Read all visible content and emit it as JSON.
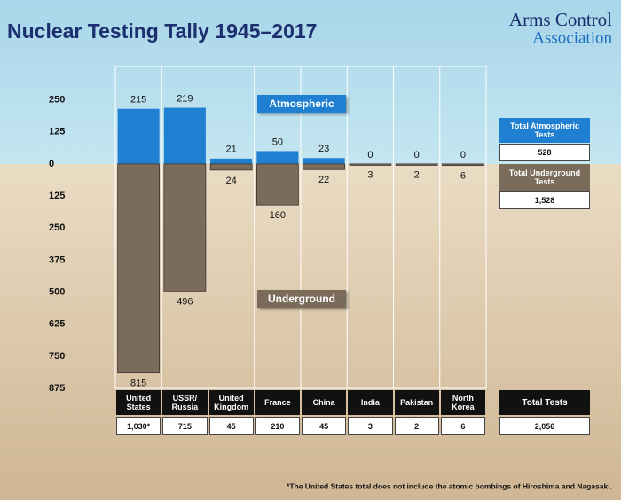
{
  "header": {
    "logo_line1": "Arms Control",
    "logo_line2": "Association"
  },
  "chart_data": {
    "type": "diverging_bar",
    "title": "Nuclear Testing Tally 1945–2017",
    "categories": [
      "United States",
      "USSR/ Russia",
      "United Kingdom",
      "France",
      "China",
      "India",
      "Pakistan",
      "North Korea"
    ],
    "series": [
      {
        "name": "Atmospheric",
        "color": "#1f7fd0",
        "values": [
          215,
          219,
          21,
          50,
          23,
          0,
          0,
          0
        ]
      },
      {
        "name": "Underground",
        "color": "#7b6b5b",
        "values": [
          -815,
          -496,
          -24,
          -160,
          -22,
          -3,
          -2,
          -6
        ],
        "value_labels": [
          "815",
          "496",
          "24",
          "160",
          "22",
          "3",
          "2",
          "6"
        ]
      }
    ],
    "totals": [
      "1,030*",
      "715",
      "45",
      "210",
      "45",
      "3",
      "2",
      "6"
    ],
    "ylim": [
      -875,
      380
    ],
    "yticks": [
      250,
      125,
      0,
      {
        "value": -125,
        "label": "125"
      },
      {
        "value": -250,
        "label": "250"
      },
      {
        "value": -375,
        "label": "375"
      },
      {
        "value": -500,
        "label": "500"
      },
      {
        "value": -625,
        "label": "625"
      },
      {
        "value": -750,
        "label": "750"
      },
      {
        "value": -875,
        "label": "875"
      }
    ],
    "grid": false,
    "summary": {
      "atmospheric_label": "Total Atmospheric Tests",
      "atmospheric_total": "528",
      "underground_label": "Total Underground Tests",
      "underground_total": "1,528",
      "total_label": "Total Tests",
      "total": "2,056"
    },
    "footnote": "*The United States total does not include the atomic bombings of Hiroshima and Nagasaki."
  }
}
